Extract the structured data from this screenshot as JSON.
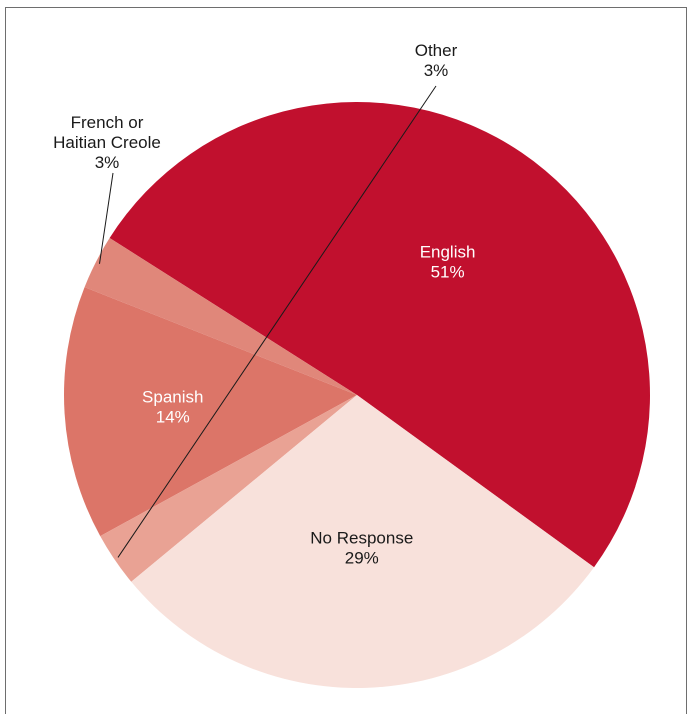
{
  "chart_data": {
    "type": "pie",
    "title": "",
    "legend": "none",
    "slices": [
      {
        "label": "English",
        "value": 51,
        "value_label": "51%",
        "color": "#c1102e"
      },
      {
        "label": "French or Haitian Creole",
        "label_lines": [
          "French or",
          "Haitian Creole"
        ],
        "value": 3,
        "value_label": "3%",
        "color": "#e0877a"
      },
      {
        "label": "Spanish",
        "value": 14,
        "value_label": "14%",
        "color": "#dc7568"
      },
      {
        "label": "Other",
        "value": 3,
        "value_label": "3%",
        "color": "#e9a294"
      },
      {
        "label": "No Response",
        "value": 29,
        "value_label": "29%",
        "color": "#f8e1db"
      }
    ]
  }
}
